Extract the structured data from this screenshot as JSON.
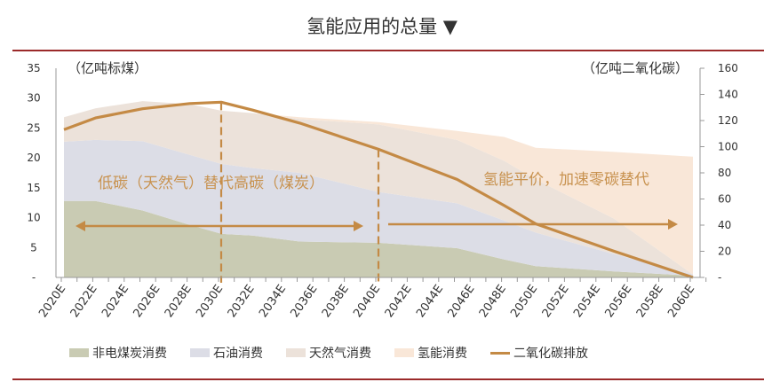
{
  "chart_data": {
    "type": "area",
    "title": "氢能应用的总量 ▼",
    "ylabel_left": "（亿吨标煤）",
    "ylabel_right": "（亿吨二氧化碳）",
    "ylim_left": [
      0,
      35
    ],
    "ylim_right": [
      0,
      160
    ],
    "yticks_left": [
      "-",
      "5",
      "10",
      "15",
      "20",
      "25",
      "30",
      "35"
    ],
    "yticks_right": [
      "-",
      "20",
      "40",
      "60",
      "80",
      "100",
      "120",
      "140",
      "160"
    ],
    "xticks": [
      "2020E",
      "2022E",
      "2024E",
      "2026E",
      "2028E",
      "2030E",
      "2032E",
      "2034E",
      "2036E",
      "2038E",
      "2040E",
      "2042E",
      "2044E",
      "2046E",
      "2048E",
      "2050E",
      "2052E",
      "2054E",
      "2056E",
      "2058E",
      "2060E"
    ],
    "x": [
      2020,
      2022,
      2025,
      2028,
      2030,
      2032,
      2035,
      2040,
      2045,
      2048,
      2050,
      2055,
      2060
    ],
    "series": [
      {
        "name": "非电煤炭消费",
        "kind": "stacked-area",
        "axis": "left",
        "color": "#c9cbb3",
        "values": [
          12.8,
          12.8,
          11.2,
          8.8,
          7.3,
          7.0,
          6.0,
          5.8,
          4.9,
          3.0,
          1.9,
          1.0,
          0.3
        ]
      },
      {
        "name": "石油消费",
        "kind": "stacked-area",
        "axis": "left",
        "color": "#dcdde6",
        "values": [
          9.9,
          10.2,
          11.6,
          11.7,
          11.7,
          11.3,
          11.5,
          8.5,
          7.5,
          6.5,
          5.6,
          2.9,
          0.2
        ]
      },
      {
        "name": "天然气消费",
        "kind": "stacked-area",
        "axis": "left",
        "color": "#ece2da",
        "values": [
          4.1,
          5.3,
          6.7,
          8.5,
          8.9,
          9.2,
          9.0,
          11.3,
          10.6,
          10.0,
          8.9,
          5.9,
          0.0
        ]
      },
      {
        "name": "氢能消费",
        "kind": "stacked-area",
        "axis": "left",
        "color": "#f9e7d8",
        "values": [
          0,
          0,
          0,
          0,
          0,
          0,
          0.3,
          0.4,
          1.5,
          4.0,
          5.3,
          11.2,
          19.7
        ]
      },
      {
        "name": "二氧化碳排放",
        "kind": "line",
        "axis": "right",
        "color": "#c48a45",
        "values": [
          113,
          122,
          129,
          133,
          134,
          128,
          118,
          98,
          75,
          55,
          41,
          20,
          0
        ]
      }
    ],
    "annotations": [
      {
        "text": "低碳（天然气）替代高碳（煤炭）",
        "range": [
          2020,
          2040
        ]
      },
      {
        "text": "氢能平价，加速零碳替代",
        "range": [
          2040,
          2060
        ]
      }
    ],
    "dividers": [
      2030,
      2040
    ],
    "legend_position": "bottom"
  }
}
